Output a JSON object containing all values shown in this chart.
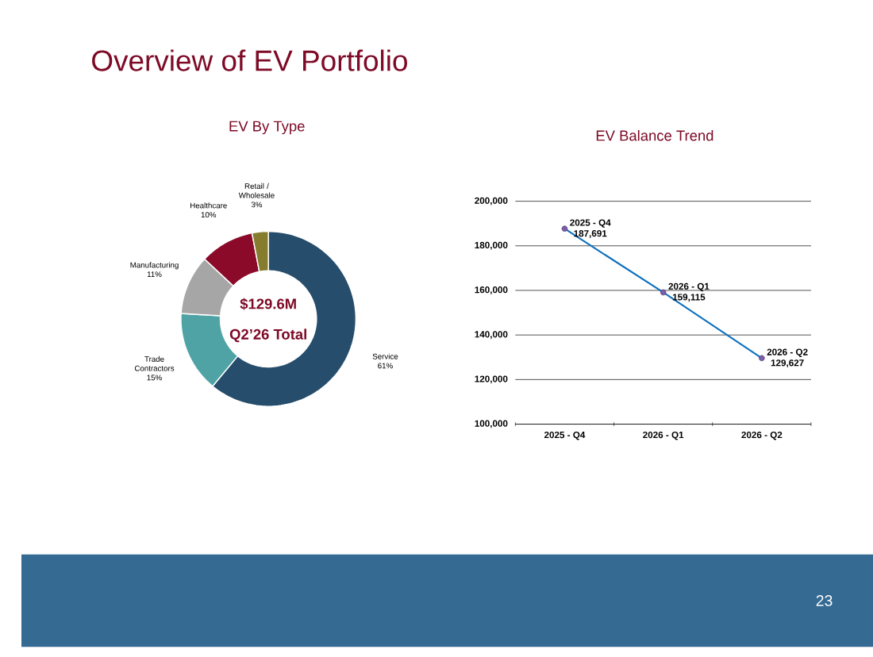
{
  "chart_data": [
    {
      "type": "other",
      "title": "Overview of EV Portfolio",
      "annotations": [
        "23"
      ]
    },
    {
      "type": "donut",
      "title": "EV By Type",
      "categories": [
        "Service",
        "Trade Contractors",
        "Manufacturing",
        "Healthcare",
        "Retail / Wholesale"
      ],
      "values": [
        61,
        15,
        11,
        10,
        3
      ],
      "colors": [
        "#264d6b",
        "#4fa3a5",
        "#a6a6a6",
        "#8b0a2a",
        "#857c2e"
      ],
      "value_labels": [
        "61%",
        "15%",
        "11%",
        "10%",
        "3%"
      ],
      "annotations": [
        "$129.6M",
        "Q2’26 Total"
      ]
    },
    {
      "type": "line",
      "title": "EV Balance Trend",
      "categories": [
        "2025 - Q4",
        "2026 - Q1",
        "2026 - Q2"
      ],
      "values": [
        187691,
        159115,
        129627
      ],
      "value_labels": [
        "187,691",
        "159,115",
        "129,627"
      ],
      "color": "#0f70be",
      "marker": "circle",
      "grid": "y",
      "ylim": [
        100000,
        200000
      ],
      "yticks": [
        {
          "value": 100000,
          "label": "100,000"
        },
        {
          "value": 120000,
          "label": "120,000"
        },
        {
          "value": 140000,
          "label": "140,000"
        },
        {
          "value": 160000,
          "label": "160,000"
        },
        {
          "value": 180000,
          "label": "180,000"
        },
        {
          "value": 200000,
          "label": "200,000"
        }
      ]
    }
  ]
}
